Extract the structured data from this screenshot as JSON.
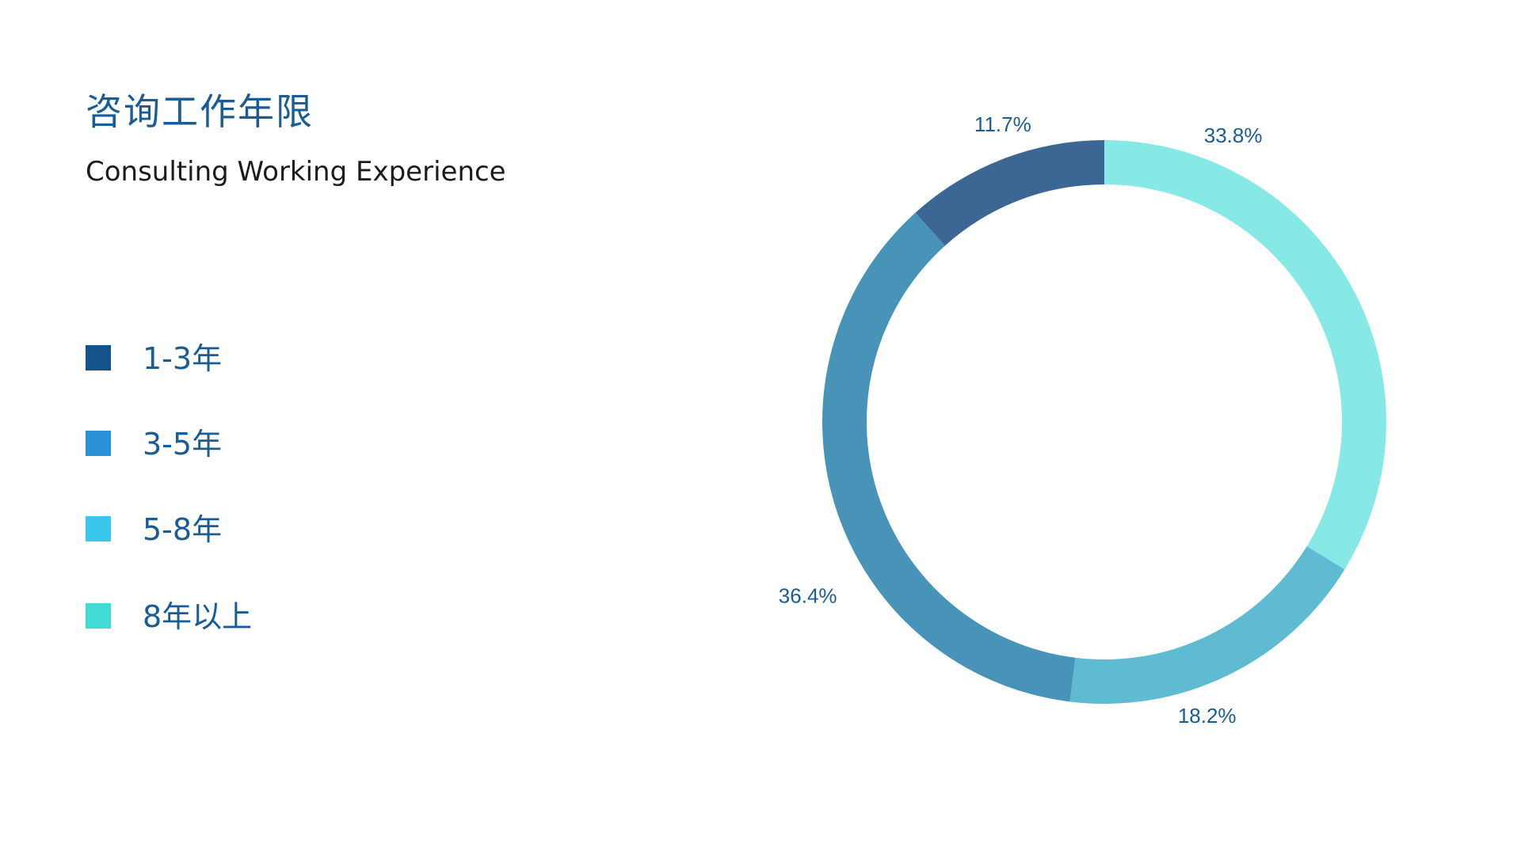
{
  "chart_data": {
    "type": "pie",
    "variant": "donut",
    "title": "咨询工作年限",
    "subtitle": "Consulting Working Experience",
    "legend_position": "left",
    "legend": [
      {
        "label": "1-3年",
        "color": "#13538a"
      },
      {
        "label": "3-5年",
        "color": "#2b91d6"
      },
      {
        "label": "5-8年",
        "color": "#38c6ec"
      },
      {
        "label": "8年以上",
        "color": "#3fdbd4"
      }
    ],
    "slices": [
      {
        "label": "11.7%",
        "value": 11.7,
        "color": "#3c6693"
      },
      {
        "label": "33.8%",
        "value": 33.8,
        "color": "#87e9e6"
      },
      {
        "label": "18.2%",
        "value": 18.2,
        "color": "#5ebbd1"
      },
      {
        "label": "36.4%",
        "value": 36.4,
        "color": "#4893b8"
      }
    ]
  }
}
